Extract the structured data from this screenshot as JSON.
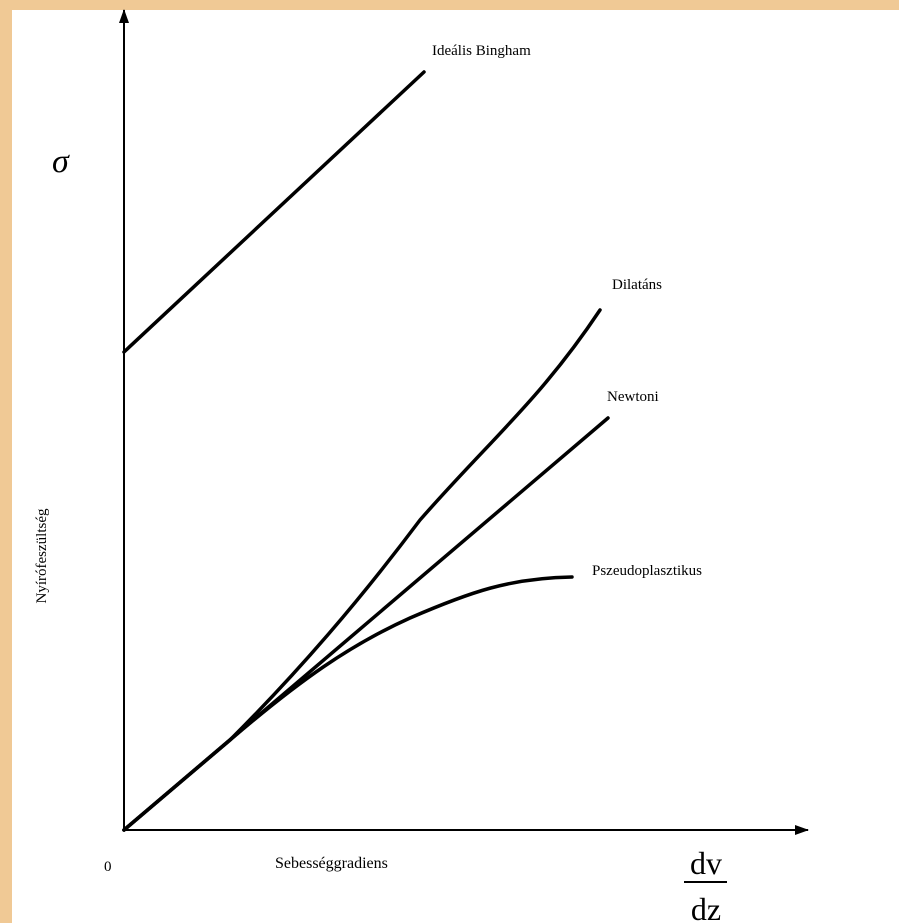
{
  "diagram": {
    "y_symbol": "σ",
    "y_label": "Nyírófeszültség",
    "x_label": "Sebességgradiens",
    "origin_label": "0",
    "x_fraction": {
      "numerator": "dv",
      "denominator": "dz"
    },
    "curves": [
      {
        "id": "bingham",
        "label": "Ideális Bingham"
      },
      {
        "id": "dilatant",
        "label": "Dilatáns"
      },
      {
        "id": "newtonian",
        "label": "Newtoni"
      },
      {
        "id": "pseudoplastic",
        "label": "Pszeudoplasztikus"
      }
    ]
  }
}
